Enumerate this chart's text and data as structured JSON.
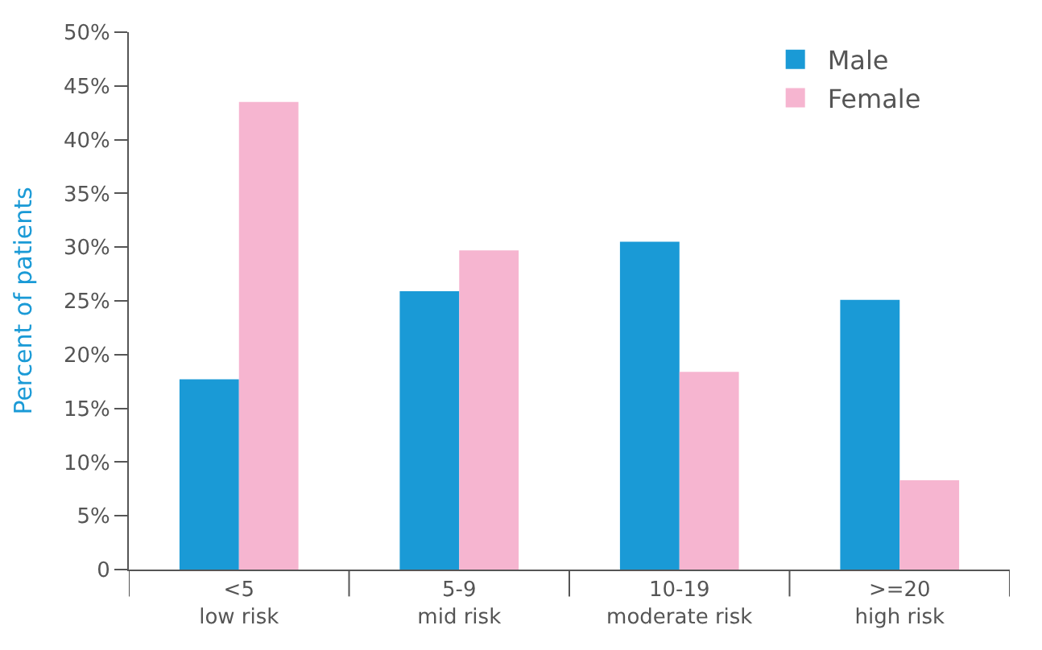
{
  "chart_data": {
    "type": "bar",
    "ylabel": "Percent of patients",
    "categories": [
      "<5\nlow risk",
      "5-9\nmid risk",
      "10-19\nmoderate risk",
      ">=20\nhigh risk"
    ],
    "series": [
      {
        "name": "Male",
        "color": "#1a9ad6",
        "values": [
          17.7,
          25.9,
          30.5,
          25.1
        ]
      },
      {
        "name": "Female",
        "color": "#f6b5d0",
        "values": [
          43.5,
          29.7,
          18.4,
          8.3
        ]
      }
    ],
    "ylim": [
      0,
      50
    ],
    "yticks": [
      0,
      {
        "value": 5,
        "label": "5%"
      },
      {
        "value": 10,
        "label": "10%"
      },
      {
        "value": 15,
        "label": "15%"
      },
      {
        "value": 20,
        "label": "20%"
      },
      {
        "value": 25,
        "label": "25%"
      },
      {
        "value": 30,
        "label": "30%"
      },
      {
        "value": 35,
        "label": "35%"
      },
      {
        "value": 40,
        "label": "40%"
      },
      {
        "value": 45,
        "label": "45%"
      },
      {
        "value": 50,
        "label": "50%"
      }
    ],
    "legend": "top right"
  }
}
